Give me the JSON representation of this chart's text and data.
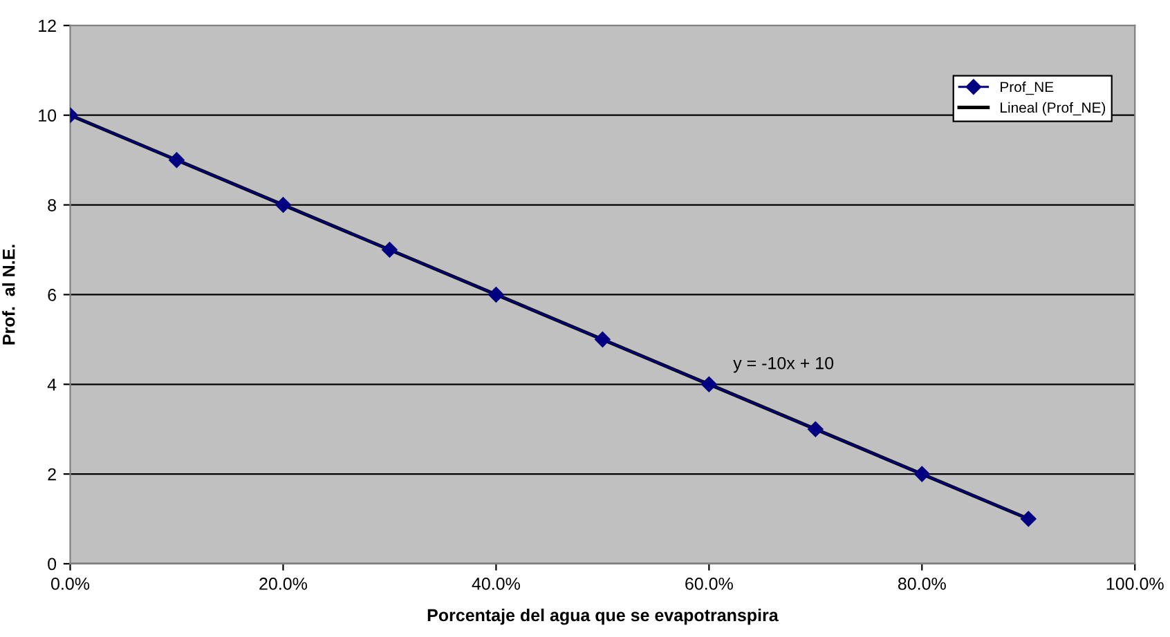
{
  "chart_data": {
    "type": "line",
    "xlabel": "Porcentaje del agua que se evapotranspira",
    "ylabel": "Prof.  al N.E.",
    "x": [
      0,
      0.1,
      0.2,
      0.3,
      0.4,
      0.5,
      0.6,
      0.7,
      0.8,
      0.9
    ],
    "series": [
      {
        "name": "Prof_NE",
        "color": "#000080",
        "values": [
          10,
          9,
          8,
          7,
          6,
          5,
          4,
          3,
          2,
          1
        ],
        "marker": "diamond",
        "line_style": "solid"
      },
      {
        "name": "Lineal (Prof_NE)",
        "color": "#000000",
        "x": [
          0,
          0.9
        ],
        "values": [
          10,
          1
        ],
        "line_style": "solid"
      }
    ],
    "xlim": [
      0,
      1
    ],
    "xticks": [
      {
        "value": 0,
        "label": "0.0%"
      },
      {
        "value": 0.2,
        "label": "20.0%"
      },
      {
        "value": 0.4,
        "label": "40.0%"
      },
      {
        "value": 0.6,
        "label": "60.0%"
      },
      {
        "value": 0.8,
        "label": "80.0%"
      },
      {
        "value": 1,
        "label": "100.0%"
      }
    ],
    "ylim": [
      0,
      12
    ],
    "yticks": [
      0,
      2,
      4,
      6,
      8,
      10,
      12
    ],
    "grid": "y",
    "legend": "top right",
    "annotations": [
      "y = -10x + 10"
    ]
  }
}
